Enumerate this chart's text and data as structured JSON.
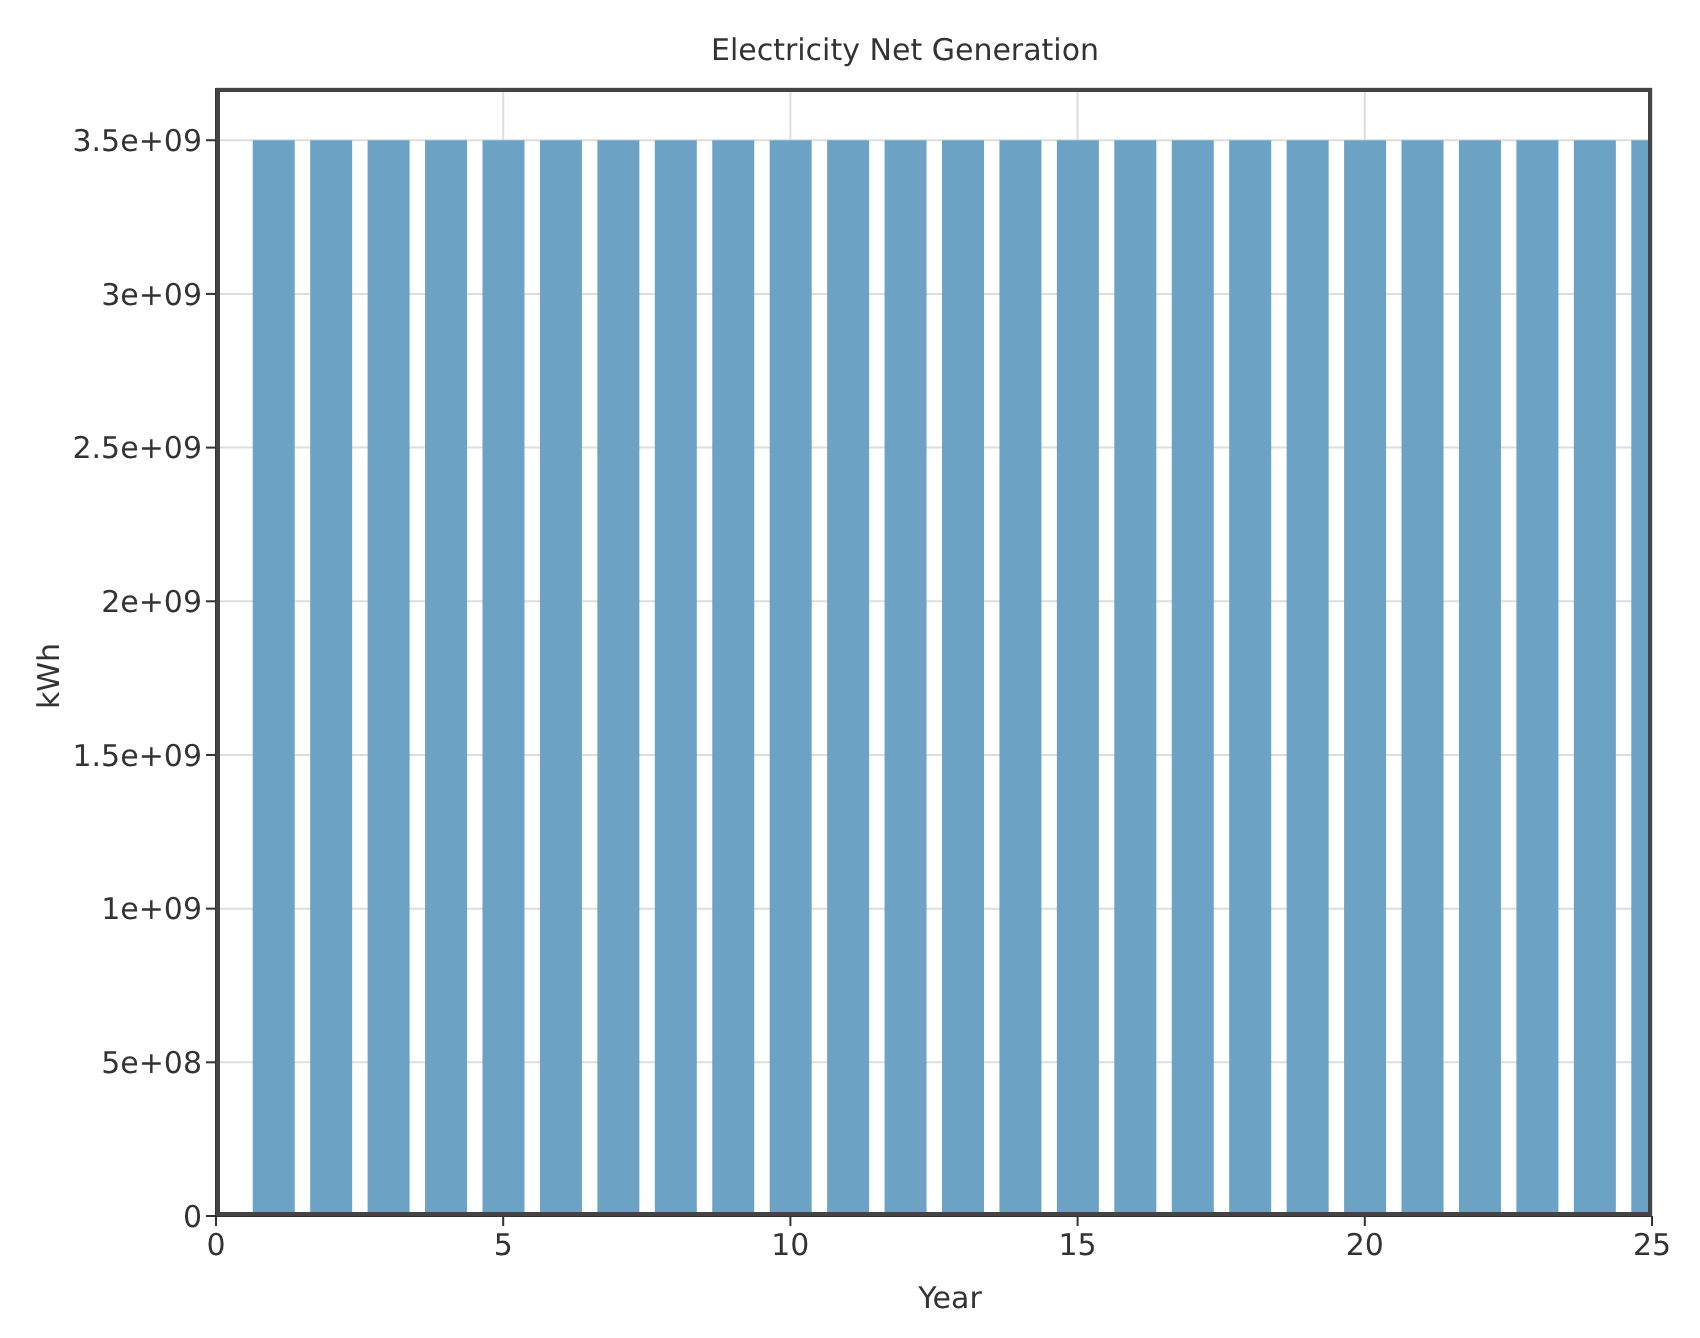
{
  "chart_data": {
    "type": "bar",
    "title": "Electricity Net Generation",
    "xlabel": "Year",
    "ylabel": "kWh",
    "x": [
      1,
      2,
      3,
      4,
      5,
      6,
      7,
      8,
      9,
      10,
      11,
      12,
      13,
      14,
      15,
      16,
      17,
      18,
      19,
      20,
      21,
      22,
      23,
      24,
      25
    ],
    "values": [
      3500000000,
      3500000000,
      3500000000,
      3500000000,
      3500000000,
      3500000000,
      3500000000,
      3500000000,
      3500000000,
      3500000000,
      3500000000,
      3500000000,
      3500000000,
      3500000000,
      3500000000,
      3500000000,
      3500000000,
      3500000000,
      3500000000,
      3500000000,
      3500000000,
      3500000000,
      3500000000,
      3500000000,
      3500000000
    ],
    "color": "#6ca3c5",
    "xlim": [
      0,
      25
    ],
    "xticks": [
      0,
      5,
      10,
      15,
      20,
      25
    ],
    "ylim": [
      0,
      3670000000
    ],
    "yticks": [
      0,
      {
        "value": 500000000,
        "label": "5e+08"
      },
      {
        "value": 1000000000,
        "label": "1e+09"
      },
      {
        "value": 1500000000,
        "label": "1.5e+09"
      },
      {
        "value": 2000000000,
        "label": "2e+09"
      },
      {
        "value": 2500000000,
        "label": "2.5e+09"
      },
      {
        "value": 3000000000,
        "label": "3e+09"
      },
      {
        "value": 3500000000,
        "label": "3.5e+09"
      }
    ],
    "grid": true,
    "legend": false
  }
}
